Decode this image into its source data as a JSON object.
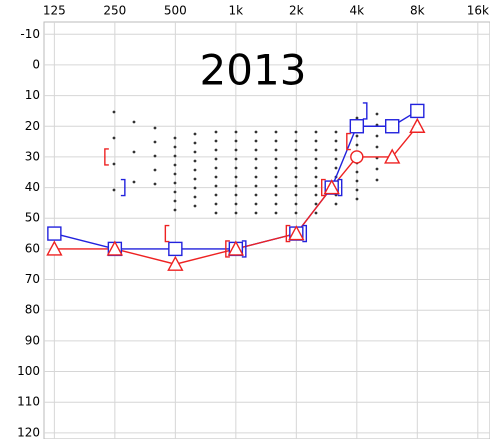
{
  "chart_data": {
    "type": "line",
    "title": "2013",
    "x": [
      125,
      250,
      500,
      1000,
      2000,
      3000,
      4000,
      6000,
      8000
    ],
    "xlim": [
      111,
      18400
    ],
    "xscale": "log",
    "xticks": [
      125,
      250,
      500,
      {
        "value": 1000,
        "label": "1k"
      },
      {
        "value": 2000,
        "label": "2k"
      },
      {
        "value": 4000,
        "label": "4k"
      },
      {
        "value": 8000,
        "label": "8k"
      },
      {
        "value": 16000,
        "label": "16k"
      }
    ],
    "ylim": [
      -14,
      122
    ],
    "y_inverted": true,
    "yticks": [
      -10,
      0,
      10,
      20,
      30,
      40,
      50,
      60,
      70,
      80,
      90,
      100,
      110,
      120
    ],
    "grid": true,
    "series": [
      {
        "color": "#2222dd",
        "marker": "square",
        "line": true,
        "values": [
          55,
          60,
          60,
          60,
          55,
          40,
          20,
          20,
          15
        ]
      },
      {
        "color": "#ee2222",
        "markers": [
          "triangle",
          "triangle",
          "triangle",
          "triangle",
          "triangle",
          "triangle",
          "circle",
          "triangle",
          "triangle"
        ],
        "line": true,
        "values": [
          60,
          60,
          65,
          60,
          55,
          40,
          30,
          30,
          20
        ]
      },
      {
        "color": "#ee2222",
        "marker": "left-bracket",
        "line": false,
        "values": [
          null,
          30,
          55,
          60,
          55,
          40,
          25,
          null,
          null
        ]
      },
      {
        "color": "#2222dd",
        "marker": "right-bracket",
        "line": false,
        "values": [
          null,
          40,
          null,
          60,
          55,
          40,
          15,
          null,
          null
        ]
      }
    ]
  }
}
